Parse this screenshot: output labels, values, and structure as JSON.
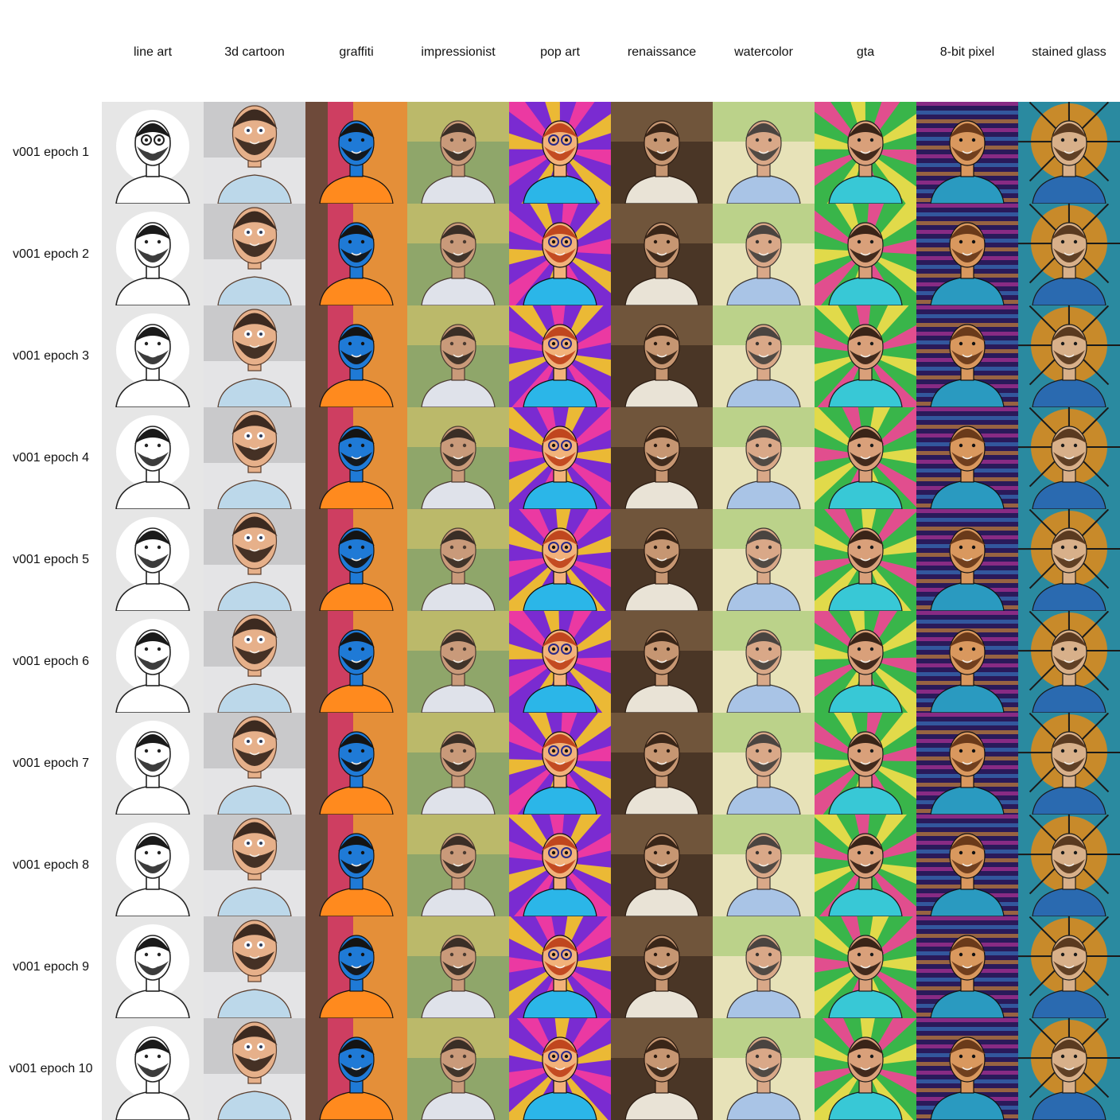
{
  "columns": [
    {
      "label": "line art",
      "style": "lineart",
      "colors": {
        "bg": "#e6e6e6",
        "bg2": "#ffffff",
        "skin": "#ffffff",
        "hair": "#1a1a1a",
        "shirt": "#ffffff",
        "line": "#222222"
      }
    },
    {
      "label": "3d cartoon",
      "style": "cartoon",
      "colors": {
        "bg": "#c9c9cb",
        "bg2": "#e4e4e6",
        "skin": "#e6b08a",
        "hair": "#3c2a20",
        "shirt": "#bcd8ea",
        "line": "#5a3d2c"
      }
    },
    {
      "label": "graffiti",
      "style": "graffiti",
      "colors": {
        "bg": "#6e4a3a",
        "bg2": "#e63b6b",
        "skin": "#1f7ad6",
        "hair": "#141414",
        "shirt": "#ff8a1e",
        "line": "#111111"
      }
    },
    {
      "label": "impressionist",
      "style": "impressionist",
      "colors": {
        "bg": "#8fa66a",
        "bg2": "#d8c76a",
        "skin": "#c99a7a",
        "hair": "#3a2e26",
        "shirt": "#dfe2ea",
        "line": "#4a3a30"
      }
    },
    {
      "label": "pop art",
      "style": "popart",
      "colors": {
        "bg": "#7a2bd1",
        "bg2": "#ffd21a",
        "skin": "#f2b27a",
        "hair": "#c0461e",
        "shirt": "#2bb6e8",
        "line": "#111111"
      }
    },
    {
      "label": "renaissance",
      "style": "renaissance",
      "colors": {
        "bg": "#4a3626",
        "bg2": "#8a6a4a",
        "skin": "#c69672",
        "hair": "#3a2618",
        "shirt": "#e9e3d6",
        "line": "#2a1a10"
      }
    },
    {
      "label": "watercolor",
      "style": "watercolor",
      "colors": {
        "bg": "#e7e2b8",
        "bg2": "#9fc86a",
        "skin": "#d9a888",
        "hair": "#4a4440",
        "shirt": "#a9c4e6",
        "line": "#3a3430"
      }
    },
    {
      "label": "gta",
      "style": "gta",
      "colors": {
        "bg": "#39b54a",
        "bg2": "#ffe14a",
        "skin": "#d9a07a",
        "hair": "#3a2418",
        "shirt": "#38c8d6",
        "line": "#1a1a1a"
      }
    },
    {
      "label": "8-bit pixel",
      "style": "pixel",
      "colors": {
        "bg": "#2a1a5a",
        "bg2": "#d63aa8",
        "skin": "#d9985e",
        "hair": "#6a3a1a",
        "shirt": "#2a9ac0",
        "line": "#111111"
      }
    },
    {
      "label": "stained glass",
      "style": "stained",
      "colors": {
        "bg": "#2a8aa0",
        "bg2": "#c88a2a",
        "skin": "#d8b08a",
        "hair": "#5a3a20",
        "shirt": "#2a6ab0",
        "line": "#1a1a1a"
      }
    }
  ],
  "rows": [
    {
      "label": "v001 epoch 1"
    },
    {
      "label": "v001 epoch 2"
    },
    {
      "label": "v001 epoch 3"
    },
    {
      "label": "v001 epoch 4"
    },
    {
      "label": "v001 epoch 5"
    },
    {
      "label": "v001 epoch 6"
    },
    {
      "label": "v001 epoch 7"
    },
    {
      "label": "v001 epoch 8"
    },
    {
      "label": "v001 epoch 9"
    },
    {
      "label": "v001 epoch 10"
    }
  ]
}
